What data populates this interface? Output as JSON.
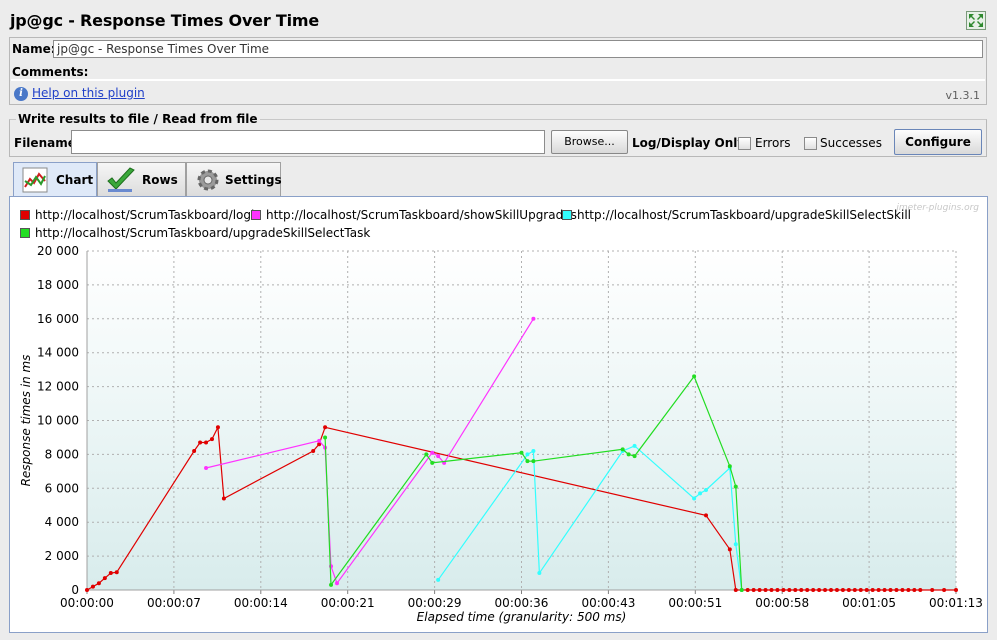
{
  "window": {
    "title": "jp@gc - Response Times Over Time",
    "expand_icon": "expand-icon"
  },
  "name_panel": {
    "name_label": "Name:",
    "name_value": "jp@gc - Response Times Over Time",
    "comments_label": "Comments:",
    "comments_value": "",
    "help_link": "Help on this plugin",
    "version": "v1.3.1"
  },
  "file_panel": {
    "legend": "Write results to file / Read from file",
    "filename_label": "Filename",
    "filename_value": "",
    "browse_label": "Browse...",
    "log_display_label": "Log/Display Only:",
    "errors_label": "Errors",
    "errors_checked": false,
    "successes_label": "Successes",
    "successes_checked": false,
    "configure_label": "Configure"
  },
  "tabs": [
    {
      "label": "Chart",
      "icon": "chart-icon",
      "active": true
    },
    {
      "label": "Rows",
      "icon": "checkmark-icon",
      "active": false
    },
    {
      "label": "Settings",
      "icon": "gear-icon",
      "active": false
    }
  ],
  "watermark": "jmeter-plugins.org",
  "colors": {
    "login": "#e00000",
    "showSkillUpgrades": "#ff33ff",
    "upgradeSkillSelectSkill": "#33ffff",
    "upgradeSkillSelectTask": "#22dd22",
    "active_tab": "#dfe9f8",
    "chart_panel_border": "#8aa0c8"
  },
  "chart_data": {
    "type": "line",
    "title": "",
    "xlabel": "Elapsed time (granularity: 500 ms)",
    "ylabel": "Response times in ms",
    "ylim": [
      0,
      20000
    ],
    "y_ticks": [
      "0",
      "2 000",
      "4 000",
      "6 000",
      "8 000",
      "10 000",
      "12 000",
      "14 000",
      "16 000",
      "18 000",
      "20 000"
    ],
    "x_ticks": [
      "00:00:00",
      "00:00:07",
      "00:00:14",
      "00:00:21",
      "00:00:29",
      "00:00:36",
      "00:00:43",
      "00:00:51",
      "00:00:58",
      "00:01:05",
      "00:01:13"
    ],
    "xlim_seconds": [
      0,
      73
    ],
    "grid": true,
    "legend_position": "top",
    "series": [
      {
        "name": "http://localhost/ScrumTaskboard/login",
        "color": "#e00000",
        "points": [
          [
            0,
            0
          ],
          [
            0.5,
            200
          ],
          [
            1,
            400
          ],
          [
            1.5,
            700
          ],
          [
            2,
            1000
          ],
          [
            2.5,
            1050
          ],
          [
            9,
            8200
          ],
          [
            9.5,
            8700
          ],
          [
            10,
            8700
          ],
          [
            10.5,
            8900
          ],
          [
            11,
            9600
          ],
          [
            11.5,
            5400
          ],
          [
            19,
            8200
          ],
          [
            19.5,
            8600
          ],
          [
            20,
            9600
          ],
          [
            52,
            4400
          ],
          [
            54,
            2400
          ],
          [
            54.5,
            0
          ],
          [
            55,
            0
          ],
          [
            55.5,
            0
          ],
          [
            56,
            0
          ],
          [
            56.5,
            0
          ],
          [
            57,
            0
          ],
          [
            57.5,
            0
          ],
          [
            58,
            0
          ],
          [
            58.5,
            0
          ],
          [
            59,
            0
          ],
          [
            59.5,
            0
          ],
          [
            60,
            0
          ],
          [
            60.5,
            0
          ],
          [
            61,
            0
          ],
          [
            61.5,
            0
          ],
          [
            62,
            0
          ],
          [
            62.5,
            0
          ],
          [
            63,
            0
          ],
          [
            63.5,
            0
          ],
          [
            64,
            0
          ],
          [
            64.5,
            0
          ],
          [
            65,
            0
          ],
          [
            65.5,
            0
          ],
          [
            66,
            0
          ],
          [
            66.5,
            0
          ],
          [
            67,
            0
          ],
          [
            67.5,
            0
          ],
          [
            68,
            0
          ],
          [
            68.5,
            0
          ],
          [
            69,
            0
          ],
          [
            69.5,
            0
          ],
          [
            70,
            0
          ],
          [
            71,
            0
          ],
          [
            72,
            0
          ],
          [
            73,
            0
          ]
        ]
      },
      {
        "name": "http://localhost/ScrumTaskboard/showSkillUpgrades",
        "color": "#ff33ff",
        "points": [
          [
            10,
            7200
          ],
          [
            19.5,
            8800
          ],
          [
            20,
            8400
          ],
          [
            20.5,
            1400
          ],
          [
            21,
            400
          ],
          [
            29,
            8100
          ],
          [
            29.5,
            7900
          ],
          [
            30,
            7500
          ],
          [
            37.5,
            16000
          ]
        ]
      },
      {
        "name": "http://localhost/ScrumTaskboard/upgradeSkillSelectSkill",
        "color": "#33ffff",
        "points": [
          [
            29.5,
            600
          ],
          [
            37,
            8000
          ],
          [
            37.5,
            8200
          ],
          [
            38,
            1000
          ],
          [
            45,
            8200
          ],
          [
            46,
            8500
          ],
          [
            51,
            5400
          ],
          [
            51.5,
            5700
          ],
          [
            52,
            5900
          ],
          [
            54,
            7200
          ],
          [
            54.5,
            2700
          ],
          [
            55,
            0
          ]
        ]
      },
      {
        "name": "http://localhost/ScrumTaskboard/upgradeSkillSelectTask",
        "color": "#22dd22",
        "points": [
          [
            20,
            9000
          ],
          [
            20.5,
            300
          ],
          [
            28.5,
            8000
          ],
          [
            29,
            7500
          ],
          [
            36.5,
            8100
          ],
          [
            37,
            7600
          ],
          [
            37.5,
            7600
          ],
          [
            45,
            8300
          ],
          [
            45.5,
            8000
          ],
          [
            46,
            7900
          ],
          [
            51,
            12600
          ],
          [
            54,
            7300
          ],
          [
            54.5,
            6100
          ],
          [
            55,
            0
          ]
        ]
      }
    ]
  }
}
